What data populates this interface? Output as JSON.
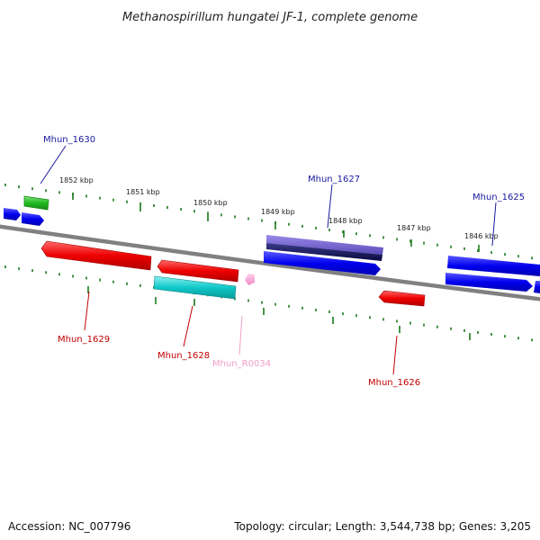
{
  "title": "Methanospirillum hungatei JF-1, complete genome",
  "footer": {
    "accession": "Accession: NC_007796",
    "topology": "Topology: circular; Length: 3,544,738 bp; Genes: 3,205"
  },
  "colors": {
    "background": "#ffffff",
    "backbone": "#808080",
    "ticks": "#1a7a1a",
    "forward_gene": "#0000ee",
    "reverse_gene": "#ee0000",
    "forward_label": "#1a1aa0",
    "reverse_label": "#c00000",
    "rna_label": "#f0a0c8"
  },
  "scale": {
    "upper_ticks": [
      {
        "label": "1852 kbp"
      },
      {
        "label": "1851 kbp"
      },
      {
        "label": "1850 kbp"
      },
      {
        "label": "1849 kbp"
      },
      {
        "label": "1848 kbp"
      },
      {
        "label": "1847 kbp"
      },
      {
        "label": "1846 kbp"
      }
    ]
  },
  "genes": {
    "Mhun_1630": {
      "label": "Mhun_1630",
      "strand": "+",
      "color": "#22bb22"
    },
    "Mhun_1629": {
      "label": "Mhun_1629",
      "strand": "-",
      "color": "#ee0000"
    },
    "Mhun_1628": {
      "label": "Mhun_1628",
      "strand": "-",
      "color": "#ee0000"
    },
    "Mhun_R0034": {
      "label": "Mhun_R0034",
      "strand": "-",
      "color": "#f0a0d0"
    },
    "Mhun_1627": {
      "label": "Mhun_1627",
      "strand": "+",
      "color": "#6a5acd"
    },
    "Mhun_1626": {
      "label": "Mhun_1626",
      "strand": "-",
      "color": "#ee0000"
    },
    "Mhun_1625": {
      "label": "Mhun_1625",
      "strand": "+",
      "color": "#0000ee"
    }
  }
}
